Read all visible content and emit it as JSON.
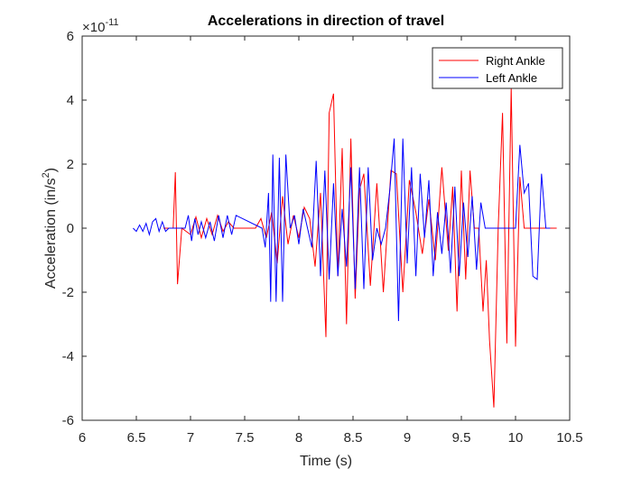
{
  "chart_data": {
    "type": "line",
    "title": "Accelerations in direction of travel",
    "xlabel": "Time (s)",
    "ylabel_main": "Acceleration (in/s",
    "ylabel_sup": "2",
    "ylabel_close": ")",
    "exponent_base": "×10",
    "exponent_power": "-11",
    "xlim": [
      6,
      10.5
    ],
    "ylim": [
      -6,
      6
    ],
    "xticks": [
      "6",
      "6.5",
      "7",
      "7.5",
      "8",
      "8.5",
      "9",
      "9.5",
      "10",
      "10.5"
    ],
    "yticks": [
      "-6",
      "-4",
      "-2",
      "0",
      "2",
      "4",
      "6"
    ],
    "legend_position": "top-right",
    "grid": false,
    "series": [
      {
        "name": "Right Ankle",
        "color": "#ff0000",
        "x": [
          6.75,
          6.8,
          6.84,
          6.86,
          6.88,
          6.92,
          7.0,
          7.05,
          7.1,
          7.15,
          7.2,
          7.25,
          7.3,
          7.35,
          7.4,
          7.6,
          7.65,
          7.7,
          7.75,
          7.8,
          7.85,
          7.9,
          7.95,
          8.0,
          8.05,
          8.1,
          8.15,
          8.2,
          8.25,
          8.28,
          8.32,
          8.36,
          8.4,
          8.44,
          8.48,
          8.52,
          8.56,
          8.6,
          8.66,
          8.72,
          8.78,
          8.85,
          8.9,
          8.96,
          9.02,
          9.08,
          9.14,
          9.2,
          9.26,
          9.32,
          9.38,
          9.42,
          9.46,
          9.5,
          9.54,
          9.58,
          9.62,
          9.66,
          9.7,
          9.73,
          9.76,
          9.8,
          9.84,
          9.88,
          9.92,
          9.96,
          10.0,
          10.04,
          10.08,
          10.12,
          10.16,
          10.2,
          10.25,
          10.3,
          10.38
        ],
        "y": [
          0,
          0,
          0,
          1.75,
          -1.75,
          0,
          -0.2,
          0.35,
          -0.3,
          0.3,
          -0.2,
          0.4,
          -0.1,
          0.2,
          0,
          0,
          0.3,
          -0.3,
          0.5,
          -1.1,
          1.0,
          -0.5,
          0.4,
          -0.3,
          0.65,
          0.3,
          -1.2,
          1.1,
          -3.4,
          3.6,
          4.2,
          -1.5,
          2.5,
          -3.0,
          2.8,
          -2.2,
          1.2,
          1.7,
          -1.8,
          1.4,
          -2.0,
          1.8,
          1.7,
          -2.0,
          1.5,
          0.5,
          -0.8,
          0.9,
          -1.0,
          1.9,
          -0.7,
          1.3,
          -2.6,
          1.8,
          -1.6,
          1.8,
          0,
          0,
          -2.6,
          -1.0,
          -3.5,
          -5.6,
          0,
          3.6,
          -3.6,
          4.4,
          -3.7,
          1.6,
          0,
          0,
          0,
          0,
          0,
          0,
          0
        ]
      },
      {
        "name": "Left Ankle",
        "color": "#0000ff",
        "x": [
          6.47,
          6.5,
          6.53,
          6.56,
          6.59,
          6.62,
          6.65,
          6.68,
          6.71,
          6.74,
          6.77,
          6.8,
          6.95,
          6.98,
          7.01,
          7.04,
          7.07,
          7.1,
          7.14,
          7.18,
          7.22,
          7.26,
          7.3,
          7.34,
          7.38,
          7.42,
          7.66,
          7.69,
          7.72,
          7.74,
          7.76,
          7.79,
          7.82,
          7.85,
          7.88,
          7.92,
          7.96,
          8.0,
          8.04,
          8.08,
          8.12,
          8.16,
          8.2,
          8.24,
          8.28,
          8.32,
          8.36,
          8.4,
          8.44,
          8.48,
          8.52,
          8.56,
          8.6,
          8.64,
          8.68,
          8.72,
          8.76,
          8.8,
          8.84,
          8.88,
          8.92,
          8.96,
          9.0,
          9.04,
          9.08,
          9.12,
          9.16,
          9.2,
          9.24,
          9.28,
          9.32,
          9.36,
          9.4,
          9.44,
          9.48,
          9.52,
          9.56,
          9.6,
          9.64,
          9.68,
          9.72,
          9.76,
          9.8,
          9.84,
          9.88,
          9.92,
          9.96,
          10.0,
          10.04,
          10.08,
          10.12,
          10.16,
          10.2,
          10.24,
          10.28,
          10.32
        ],
        "y": [
          0,
          -0.1,
          0.1,
          -0.1,
          0.15,
          -0.2,
          0.2,
          0.3,
          -0.1,
          0.2,
          -0.1,
          0,
          0,
          0.4,
          -0.4,
          0.3,
          -0.2,
          0.2,
          -0.3,
          0.2,
          -0.4,
          0.4,
          -0.3,
          0.4,
          -0.2,
          0.4,
          0,
          -0.6,
          1.1,
          -2.3,
          2.3,
          -2.3,
          2.2,
          -2.3,
          2.3,
          0,
          0.4,
          -0.5,
          0.6,
          0,
          -0.6,
          2.1,
          -1.5,
          1.8,
          -1.6,
          1.4,
          -1.5,
          0.6,
          -1.2,
          1.9,
          -1.9,
          1.9,
          -1.9,
          1.9,
          -1.0,
          0,
          -0.5,
          0,
          1.2,
          2.8,
          -2.9,
          2.8,
          -1.1,
          1.9,
          -1.5,
          1.7,
          -0.3,
          1.5,
          -1.5,
          0.5,
          -0.8,
          0.8,
          -1.4,
          1.3,
          -1.5,
          0.8,
          -0.9,
          1.0,
          -1.3,
          0.8,
          0,
          0,
          0,
          0,
          0,
          0,
          0,
          0,
          2.6,
          1.1,
          1.4,
          -1.5,
          -1.6,
          1.7,
          0,
          0
        ]
      }
    ]
  }
}
